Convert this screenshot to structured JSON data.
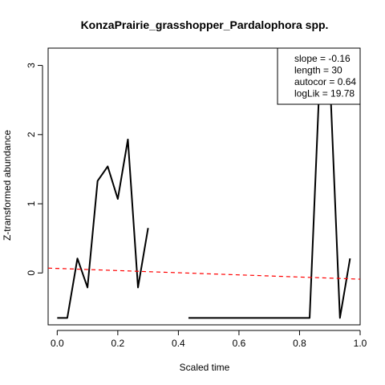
{
  "chart_data": {
    "type": "line",
    "title": "KonzaPrairie_grasshopper_Pardalophora spp.",
    "xlabel": "Scaled time",
    "ylabel": "Z-transformed abundance",
    "xlim": [
      -0.03,
      1.0
    ],
    "ylim": [
      -0.75,
      3.25
    ],
    "xticks": [
      0.0,
      0.2,
      0.4,
      0.6,
      0.8,
      1.0
    ],
    "xtick_labels": [
      "0.0",
      "0.2",
      "0.4",
      "0.6",
      "0.8",
      "1.0"
    ],
    "yticks": [
      0,
      1,
      2,
      3
    ],
    "ytick_labels": [
      "0",
      "1",
      "2",
      "3"
    ],
    "grid": false,
    "series": [
      {
        "color": "#000000",
        "style": "solid",
        "x": [
          0.0,
          0.0333,
          0.0667,
          0.1,
          0.1333,
          0.1667,
          0.2,
          0.2333,
          0.2667,
          0.3,
          0.3333,
          0.3667,
          0.4,
          0.4333,
          0.4667,
          0.5,
          0.5333,
          0.5667,
          0.6,
          0.6333,
          0.6667,
          0.7,
          0.7333,
          0.7667,
          0.8,
          0.8333,
          0.8667,
          0.9,
          0.9333,
          0.9667
        ],
        "y": [
          -0.65,
          -0.65,
          0.21,
          -0.21,
          1.33,
          1.54,
          1.07,
          1.93,
          -0.21,
          0.65,
          null,
          null,
          null,
          -0.65,
          -0.65,
          -0.65,
          -0.65,
          -0.65,
          -0.65,
          -0.65,
          -0.65,
          -0.65,
          -0.65,
          -0.65,
          -0.65,
          -0.65,
          2.85,
          2.85,
          -0.65,
          0.21
        ]
      },
      {
        "color": "#ff0000",
        "style": "dashed",
        "x": [
          -0.03,
          1.0
        ],
        "y": [
          0.07,
          -0.09
        ]
      }
    ],
    "legend": {
      "placement": "top-right",
      "lines": [
        "slope = -0.16",
        "length = 30",
        "autocor = 0.64",
        "logLik = 19.78"
      ]
    }
  }
}
